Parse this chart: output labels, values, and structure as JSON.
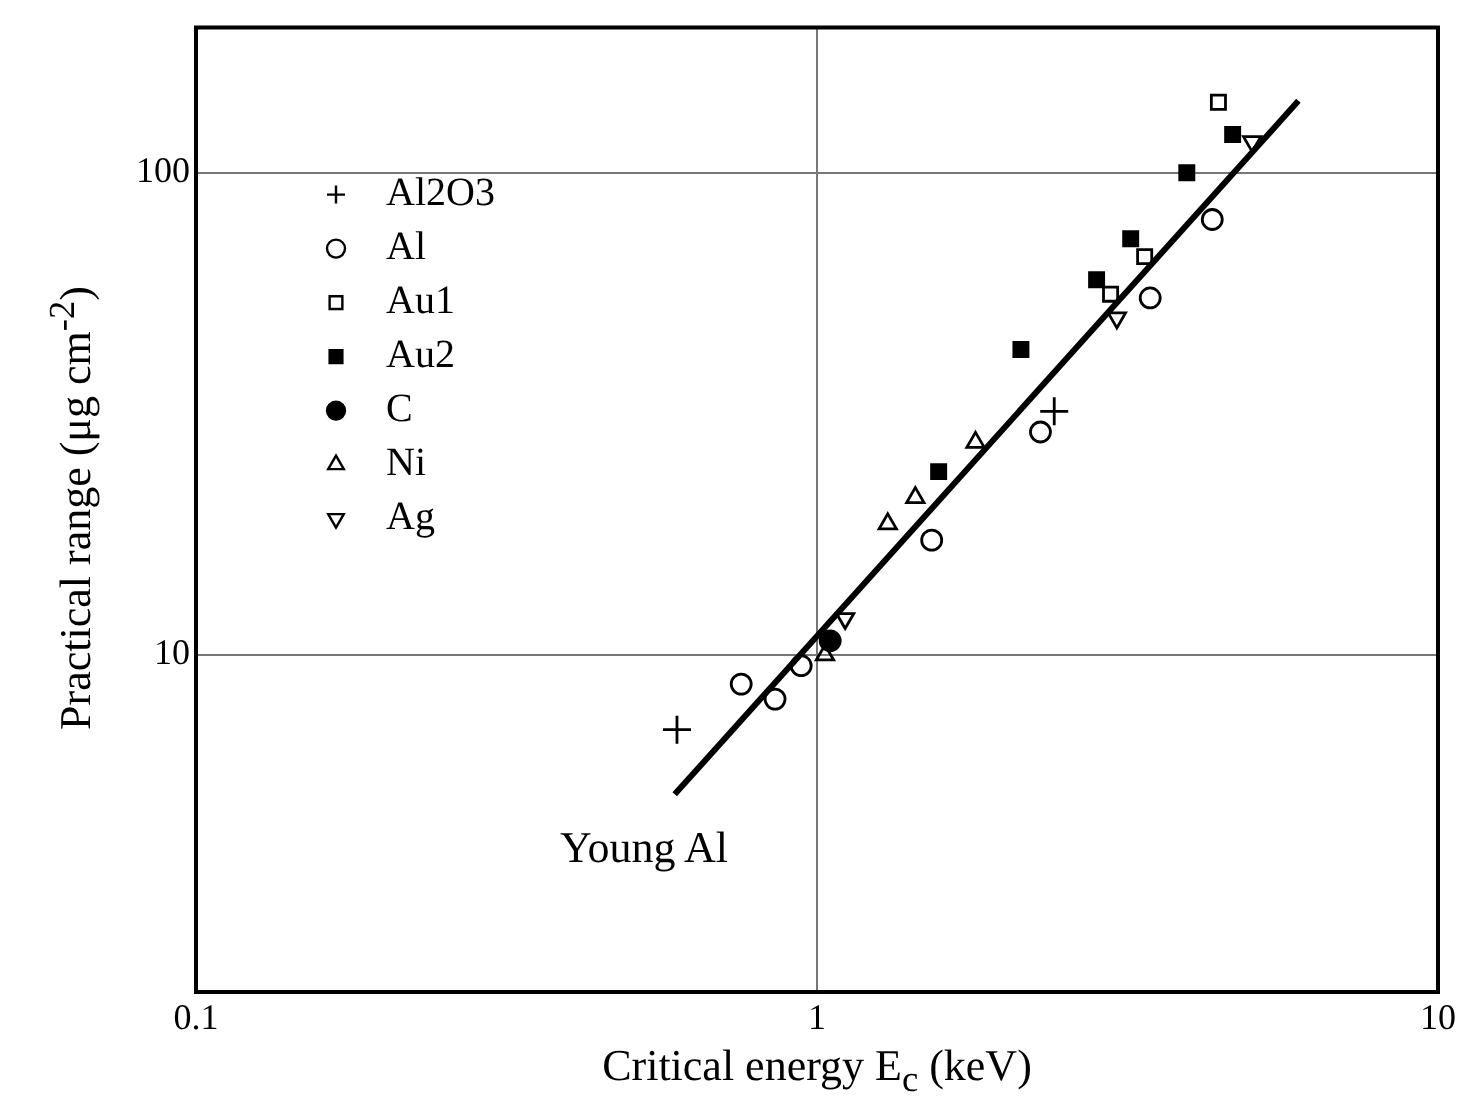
{
  "chart_data": {
    "type": "scatter",
    "xlabel": "Critical energy E$_{c}$ (keV)",
    "ylabel": "Practical range (μg cm$^{-2}$)",
    "log": "xy",
    "xlim": [
      0.1,
      10
    ],
    "xticks": [
      0.1,
      1,
      10
    ],
    "ylim": [
      2,
      200
    ],
    "yticks": [
      10,
      100
    ],
    "grid": true,
    "legend": "top left",
    "annotations": [
      "Young Al"
    ],
    "series": [
      {
        "name": "Al2O3",
        "color": "#000000",
        "marker": "cross",
        "x": [
          0.595,
          2.41
        ],
        "values": [
          7.0,
          32
        ]
      },
      {
        "name": "Al",
        "color": "#000000",
        "marker": "circle-open",
        "x": [
          0.755,
          0.856,
          0.943,
          1.53,
          2.29,
          3.44,
          4.33
        ],
        "values": [
          8.7,
          8.1,
          9.5,
          17.3,
          29,
          55,
          80
        ]
      },
      {
        "name": "Au1",
        "color": "#000000",
        "marker": "square-open",
        "x": [
          2.97,
          3.37,
          4.43
        ],
        "values": [
          56,
          67,
          140
        ]
      },
      {
        "name": "Au2",
        "color": "#000000",
        "marker": "square",
        "x": [
          1.57,
          2.13,
          2.82,
          3.2,
          3.94,
          4.67
        ],
        "values": [
          24,
          43,
          60,
          73,
          100,
          120
        ]
      },
      {
        "name": "C",
        "color": "#000000",
        "marker": "circle",
        "x": [
          1.05
        ],
        "values": [
          10.7
        ]
      },
      {
        "name": "Ni",
        "color": "#000000",
        "marker": "triangle-open",
        "x": [
          1.03,
          1.3,
          1.44,
          1.8
        ],
        "values": [
          10,
          18.7,
          21.2,
          27.6
        ]
      },
      {
        "name": "Ag",
        "color": "#000000",
        "marker": "triangle-down-open",
        "x": [
          1.11,
          3.04,
          5.02
        ],
        "values": [
          11.9,
          50,
          116
        ]
      },
      {
        "type": "line",
        "color": "#000000",
        "marker": "none",
        "x": [
          0.59,
          5.96
        ],
        "values": [
          5.14,
          141
        ]
      }
    ]
  }
}
